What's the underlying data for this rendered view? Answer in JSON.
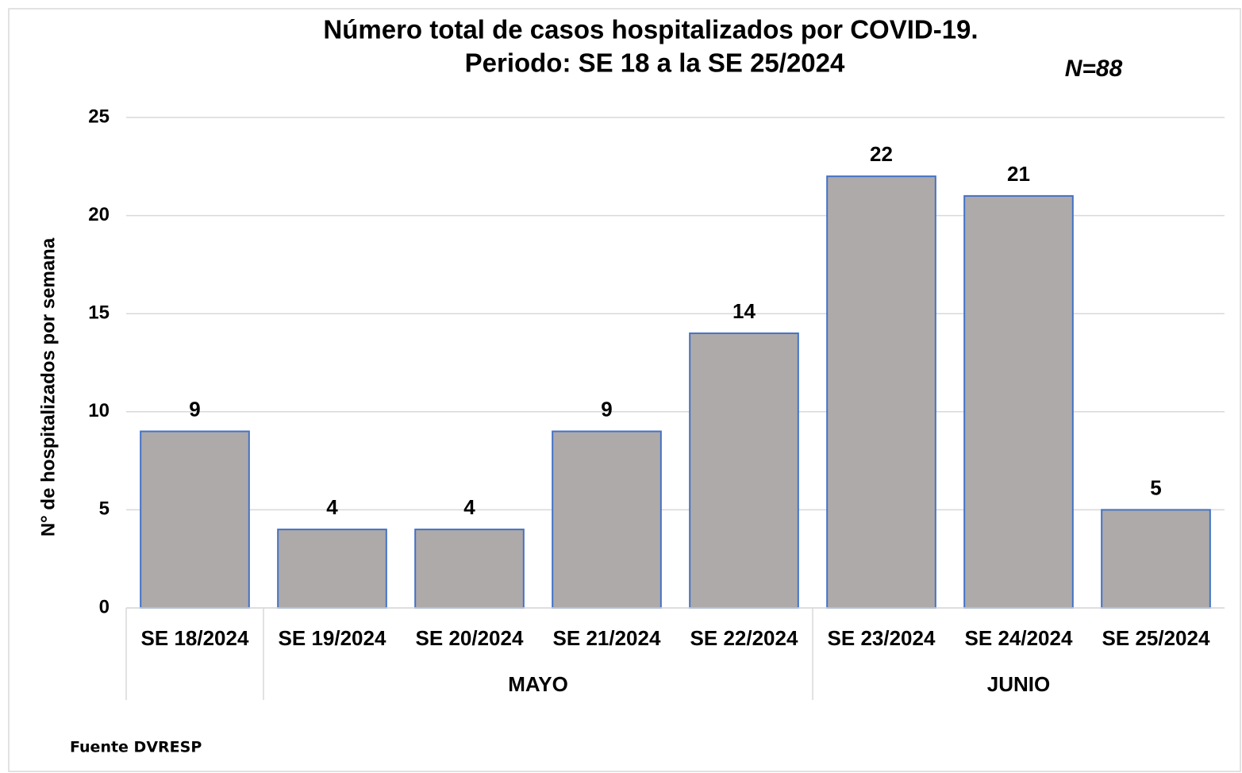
{
  "chart_data": {
    "type": "bar",
    "title": "Número total de casos hospitalizados por COVID-19.",
    "subtitle": "Periodo:  SE 18 a la SE 25/2024",
    "annotation": "N=88",
    "y_label": "N° de hospitalizados por semana",
    "source": "Fuente DVRESP",
    "categories": [
      "SE 18/2024",
      "SE 19/2024",
      "SE 20/2024",
      "SE 21/2024",
      "SE 22/2024",
      "SE 23/2024",
      "SE 24/2024",
      "SE 25/2024"
    ],
    "groups": [
      {
        "label": null,
        "size": 1
      },
      {
        "label": "MAYO",
        "size": 4
      },
      {
        "label": "JUNIO",
        "size": 3
      }
    ],
    "values": [
      9,
      4,
      4,
      9,
      14,
      22,
      21,
      5
    ],
    "color": "#aeaaaa",
    "edge_color": "#4472c4",
    "ylim": [
      0,
      25
    ],
    "yticks": [
      0,
      5,
      10,
      15,
      20,
      25
    ],
    "grid": true
  }
}
